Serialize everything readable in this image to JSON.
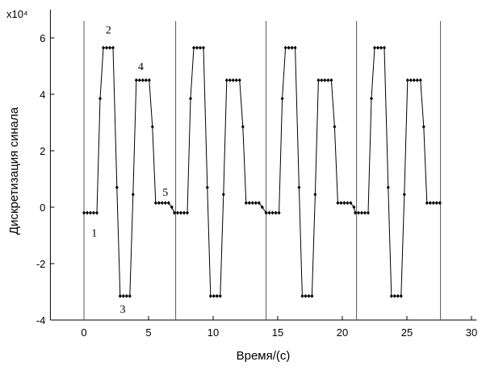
{
  "chart_data": {
    "type": "line",
    "x_label": "Время/(с)",
    "y_label": "Дискретизация синала",
    "y_multiplier": "x10⁴",
    "xlim": [
      -2.6,
      30.4
    ],
    "xticks": [
      0,
      5,
      10,
      15,
      20,
      25,
      30
    ],
    "ylim": [
      -4,
      7
    ],
    "yticks": [
      -4,
      -2,
      0,
      2,
      4,
      6
    ],
    "grid": false,
    "vlines": [
      0,
      7.1,
      14.1,
      21.1,
      27.6
    ],
    "annotations": [
      {
        "text": "1",
        "x": 0.8,
        "y": -0.9
      },
      {
        "text": "2",
        "x": 1.9,
        "y": 6.3
      },
      {
        "text": "3",
        "x": 3.0,
        "y": -3.6
      },
      {
        "text": "4",
        "x": 4.4,
        "y": 5.0
      },
      {
        "text": "5",
        "x": 6.3,
        "y": 0.55
      }
    ],
    "series": [
      {
        "color": "#000000",
        "x": [
          0,
          0.25,
          0.5,
          0.75,
          1.0,
          1.25,
          1.5,
          1.75,
          2.0,
          2.25,
          2.55,
          2.8,
          3.05,
          3.3,
          3.55,
          3.8,
          4.05,
          4.3,
          4.55,
          4.8,
          5.05,
          5.3,
          5.55,
          5.8,
          6.05,
          6.3,
          6.55,
          6.8,
          7.0,
          7.25,
          7.5,
          7.75,
          8.0,
          8.25,
          8.5,
          8.75,
          9.0,
          9.25,
          9.55,
          9.8,
          10.05,
          10.3,
          10.55,
          10.8,
          11.05,
          11.3,
          11.55,
          11.8,
          12.05,
          12.3,
          12.55,
          12.8,
          13.05,
          13.3,
          13.55,
          13.8,
          14.1,
          14.35,
          14.6,
          14.85,
          15.1,
          15.35,
          15.6,
          15.85,
          16.1,
          16.35,
          16.65,
          16.9,
          17.15,
          17.4,
          17.65,
          17.9,
          18.15,
          18.4,
          18.65,
          18.9,
          19.15,
          19.4,
          19.65,
          19.9,
          20.15,
          20.4,
          20.65,
          20.9,
          21.0,
          21.25,
          21.5,
          21.75,
          22.0,
          22.25,
          22.5,
          22.75,
          23.0,
          23.25,
          23.55,
          23.8,
          24.05,
          24.3,
          24.55,
          24.8,
          25.05,
          25.3,
          25.55,
          25.8,
          26.05,
          26.3,
          26.55,
          26.8,
          27.05,
          27.3,
          27.55
        ],
        "values": [
          -0.2,
          -0.2,
          -0.2,
          -0.2,
          -0.2,
          3.85,
          5.65,
          5.65,
          5.65,
          5.65,
          0.7,
          -3.15,
          -3.15,
          -3.15,
          -3.15,
          0.45,
          4.5,
          4.5,
          4.5,
          4.5,
          4.5,
          2.85,
          0.15,
          0.15,
          0.15,
          0.15,
          0.15,
          0.0,
          -0.2,
          -0.2,
          -0.2,
          -0.2,
          -0.2,
          3.85,
          5.65,
          5.65,
          5.65,
          5.65,
          0.7,
          -3.15,
          -3.15,
          -3.15,
          -3.15,
          0.45,
          4.5,
          4.5,
          4.5,
          4.5,
          4.5,
          2.85,
          0.15,
          0.15,
          0.15,
          0.15,
          0.15,
          0.0,
          -0.2,
          -0.2,
          -0.2,
          -0.2,
          -0.2,
          3.85,
          5.65,
          5.65,
          5.65,
          5.65,
          0.7,
          -3.15,
          -3.15,
          -3.15,
          -3.15,
          0.45,
          4.5,
          4.5,
          4.5,
          4.5,
          4.5,
          2.85,
          0.15,
          0.15,
          0.15,
          0.15,
          0.15,
          0.0,
          -0.2,
          -0.2,
          -0.2,
          -0.2,
          -0.2,
          3.85,
          5.65,
          5.65,
          5.65,
          5.65,
          0.7,
          -3.15,
          -3.15,
          -3.15,
          -3.15,
          0.45,
          4.5,
          4.5,
          4.5,
          4.5,
          4.5,
          2.85,
          0.15,
          0.15,
          0.15,
          0.15,
          0.15
        ]
      }
    ]
  }
}
